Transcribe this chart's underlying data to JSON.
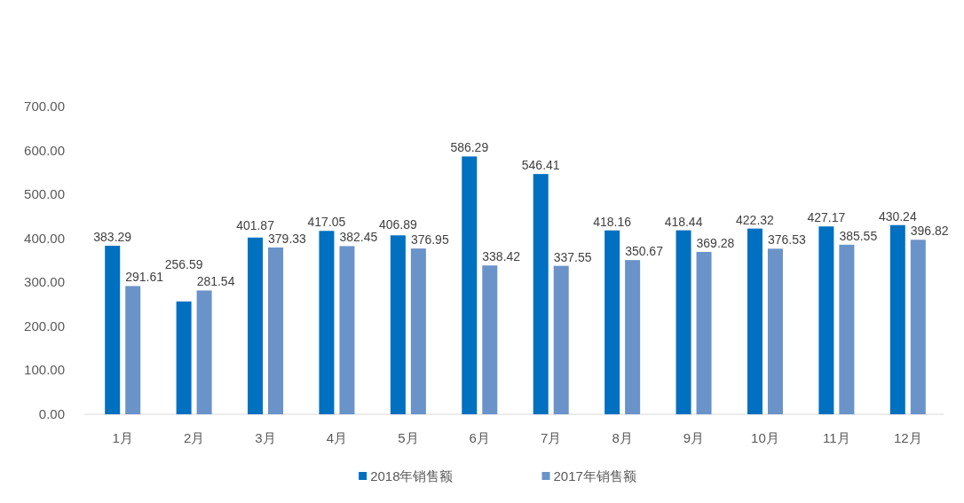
{
  "chart_data": {
    "type": "bar",
    "categories": [
      "1月",
      "2月",
      "3月",
      "4月",
      "5月",
      "6月",
      "7月",
      "8月",
      "9月",
      "10月",
      "11月",
      "12月"
    ],
    "series": [
      {
        "name": "2018年销售额",
        "color": "#0070c0",
        "values": [
          383.29,
          256.59,
          401.87,
          417.05,
          406.89,
          586.29,
          546.41,
          418.16,
          418.44,
          422.32,
          427.17,
          430.24
        ]
      },
      {
        "name": "2017年销售额",
        "color": "#6a93c9",
        "values": [
          291.61,
          281.54,
          379.33,
          382.45,
          376.95,
          338.42,
          337.55,
          350.67,
          369.28,
          376.53,
          385.55,
          396.82
        ]
      }
    ],
    "ylim": [
      0,
      700
    ],
    "yticks": [
      {
        "value": 0,
        "label": "0.00"
      },
      {
        "value": 100,
        "label": "100.00"
      },
      {
        "value": 200,
        "label": "200.00"
      },
      {
        "value": 300,
        "label": "300.00"
      },
      {
        "value": 400,
        "label": "400.00"
      },
      {
        "value": 500,
        "label": "500.00"
      },
      {
        "value": 600,
        "label": "600.00"
      },
      {
        "value": 700,
        "label": "700.00"
      }
    ],
    "data_labels": true,
    "legend": "bottom"
  }
}
